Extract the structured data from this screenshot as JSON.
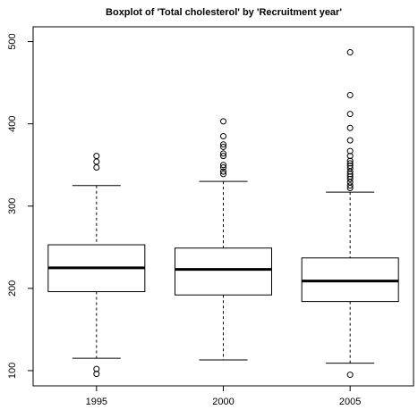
{
  "chart_data": {
    "type": "box",
    "title": "Boxplot of 'Total cholesterol' by 'Recruitment year'",
    "categories": [
      "1995",
      "2000",
      "2005"
    ],
    "boxes": [
      {
        "min": 115,
        "q1": 196,
        "median": 225,
        "q3": 253,
        "max": 325,
        "outliers": [
          361,
          354,
          347,
          102,
          96
        ]
      },
      {
        "min": 113,
        "q1": 192,
        "median": 223,
        "q3": 249,
        "max": 330,
        "outliers": [
          403,
          385,
          375,
          372,
          364,
          361,
          350,
          347,
          342,
          339
        ]
      },
      {
        "min": 109,
        "q1": 184,
        "median": 209,
        "q3": 237,
        "max": 317,
        "outliers": [
          487,
          435,
          412,
          395,
          380,
          367,
          361,
          355,
          352,
          349,
          346,
          342,
          339,
          336,
          333,
          329,
          325,
          322,
          95
        ]
      }
    ],
    "ylim": [
      81.5,
      518
    ],
    "yticks": [
      100,
      200,
      300,
      400,
      500
    ]
  }
}
